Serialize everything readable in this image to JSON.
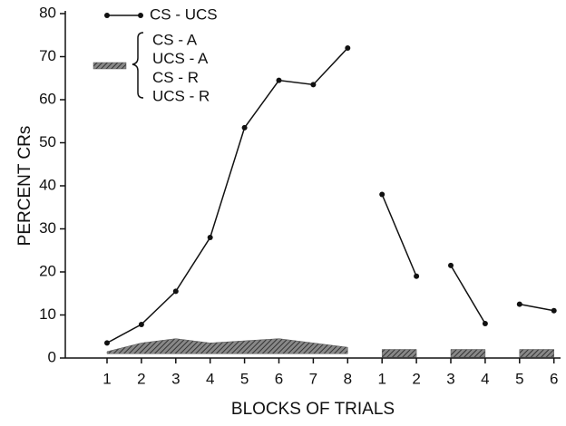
{
  "chart_data": {
    "type": "line",
    "xlabel": "BLOCKS OF TRIALS",
    "ylabel": "PERCENT CRs",
    "categories": [
      "1",
      "2",
      "3",
      "4",
      "5",
      "6",
      "7",
      "8",
      "1",
      "2",
      "3",
      "4",
      "5",
      "6"
    ],
    "groups": [
      8,
      2,
      2,
      2
    ],
    "series": [
      {
        "name": "CS - UCS",
        "color": "#111111",
        "values": [
          3.5,
          7.8,
          15.5,
          28,
          53.5,
          64.5,
          63.5,
          72,
          38,
          19,
          21.5,
          8,
          12.5,
          11
        ]
      },
      {
        "names": [
          "CS - A",
          "UCS - A",
          "CS - R",
          "UCS - R"
        ],
        "color": "#555555",
        "values": [
          1.5,
          3.5,
          4.5,
          3.5,
          4,
          4.5,
          3.5,
          2.5,
          2,
          2,
          2,
          2,
          2,
          2
        ]
      }
    ],
    "ylim": [
      0,
      80
    ],
    "yticks": [
      0,
      10,
      20,
      30,
      40,
      50,
      60,
      70,
      80
    ],
    "grid": false
  }
}
